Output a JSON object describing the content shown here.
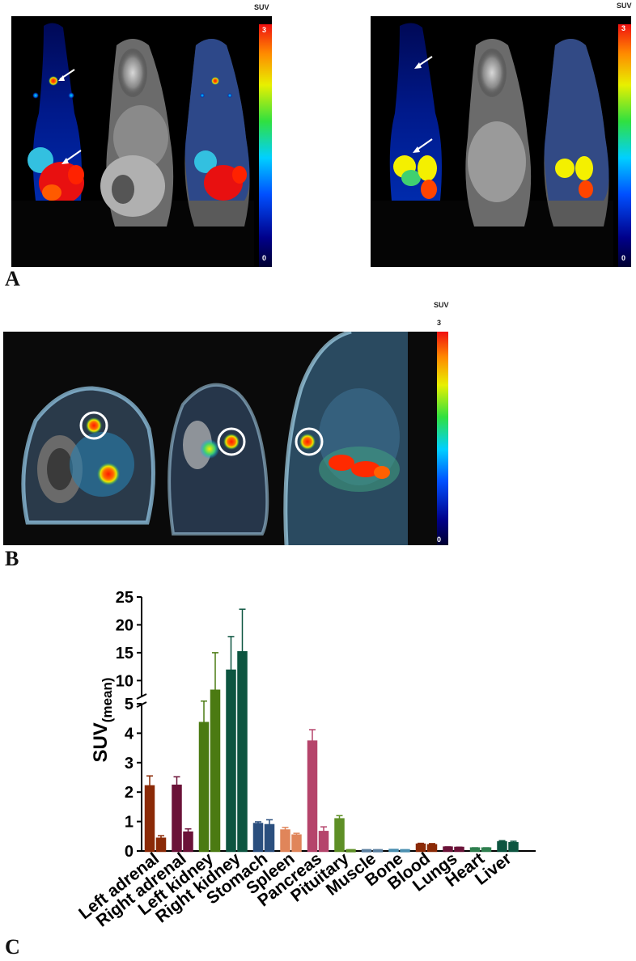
{
  "panel_labels": {
    "a": "A",
    "b": "B",
    "c": "C"
  },
  "colorbar": {
    "title": "SUV",
    "max": "3",
    "min": "0"
  },
  "colors": {
    "left_adrenal": "#8b2a07",
    "right_adrenal": "#6b1238",
    "left_kidney": "#4b7a12",
    "right_kidney": "#0d5540",
    "stomach": "#2b4f7e",
    "spleen": "#e0855a",
    "pancreas": "#b5446b",
    "pituitary": "#5e8f26",
    "muscle": "#5b7f9f",
    "bone": "#4a8fb0",
    "blood": "#8b2a07",
    "lungs": "#6b1238",
    "heart": "#2f7f4f",
    "liver": "#0d5540"
  },
  "chart_data": {
    "type": "bar",
    "ylabel": "SUV",
    "ylabel_sub": "(mean)",
    "y_scale": "broken",
    "y_break": [
      5,
      7
    ],
    "ylim": [
      0,
      25
    ],
    "lower_ticks": [
      "0",
      "1",
      "2",
      "3",
      "4",
      "5"
    ],
    "upper_ticks": [
      "10",
      "15",
      "20",
      "25"
    ],
    "categories": [
      "Left adrenal",
      "Right adrenal",
      "Left kidney",
      "Right kidney",
      "Stomach",
      "Spleen",
      "Pancreas",
      "Pituitary",
      "Muscle",
      "Bone",
      "Blood",
      "Lungs",
      "Heart",
      "Liver"
    ],
    "bars": [
      {
        "category": "Left adrenal",
        "values": [
          2.2,
          0.42
        ],
        "errors": [
          0.35,
          0.1
        ],
        "color": "#8b2a07"
      },
      {
        "category": "Right adrenal",
        "values": [
          2.22,
          0.63
        ],
        "errors": [
          0.3,
          0.12
        ],
        "color": "#6b1238"
      },
      {
        "category": "Left kidney",
        "values": [
          4.35,
          8.2
        ],
        "errors": [
          2.3,
          6.8
        ],
        "color": "#4b7a12"
      },
      {
        "category": "Right kidney",
        "values": [
          11.8,
          15.1
        ],
        "errors": [
          6.1,
          7.7
        ],
        "color": "#0d5540"
      },
      {
        "category": "Stomach",
        "values": [
          0.92,
          0.88
        ],
        "errors": [
          0.07,
          0.18
        ],
        "color": "#2b4f7e"
      },
      {
        "category": "Spleen",
        "values": [
          0.7,
          0.53
        ],
        "errors": [
          0.1,
          0.07
        ],
        "color": "#e0855a"
      },
      {
        "category": "Pancreas",
        "values": [
          3.72,
          0.65
        ],
        "errors": [
          0.4,
          0.17
        ],
        "color": "#b5446b"
      },
      {
        "category": "Pituitary",
        "values": [
          1.08,
          0.03
        ],
        "errors": [
          0.12,
          0.01
        ],
        "color": "#5e8f26"
      },
      {
        "category": "Muscle",
        "values": [
          0.03,
          0.03
        ],
        "errors": [
          0.01,
          0.01
        ],
        "color": "#5b7f9f"
      },
      {
        "category": "Bone",
        "values": [
          0.04,
          0.03
        ],
        "errors": [
          0.01,
          0.01
        ],
        "color": "#4a8fb0"
      },
      {
        "category": "Blood",
        "values": [
          0.22,
          0.2
        ],
        "errors": [
          0.04,
          0.05
        ],
        "color": "#8b2a07"
      },
      {
        "category": "Lungs",
        "values": [
          0.12,
          0.11
        ],
        "errors": [
          0.02,
          0.02
        ],
        "color": "#6b1238"
      },
      {
        "category": "Heart",
        "values": [
          0.09,
          0.09
        ],
        "errors": [
          0.02,
          0.02
        ],
        "color": "#2f7f4f"
      },
      {
        "category": "Liver",
        "values": [
          0.3,
          0.27
        ],
        "errors": [
          0.05,
          0.06
        ],
        "color": "#0d5540"
      }
    ]
  }
}
